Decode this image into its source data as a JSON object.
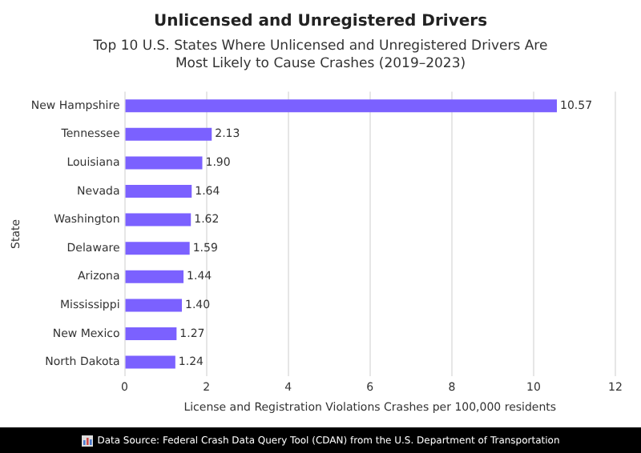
{
  "chart_data": {
    "type": "bar",
    "orientation": "horizontal",
    "title": "Unlicensed and Unregistered Drivers",
    "subtitle": "Top 10 U.S. States Where Unlicensed and Unregistered Drivers Are Most Likely to Cause Crashes (2019–2023)",
    "xlabel": "License and Registration Violations Crashes per 100,000 residents",
    "ylabel": "State",
    "categories": [
      "New Hampshire",
      "Tennessee",
      "Louisiana",
      "Nevada",
      "Washington",
      "Delaware",
      "Arizona",
      "Mississippi",
      "New Mexico",
      "North Dakota"
    ],
    "values": [
      10.57,
      2.13,
      1.9,
      1.64,
      1.62,
      1.59,
      1.44,
      1.4,
      1.27,
      1.24
    ],
    "value_labels": [
      "10.57",
      "2.13",
      "1.90",
      "1.64",
      "1.62",
      "1.59",
      "1.44",
      "1.40",
      "1.27",
      "1.24"
    ],
    "color": "#7b61ff",
    "xlim": [
      0,
      12
    ],
    "xticks": [
      0,
      2,
      4,
      6,
      8,
      10,
      12
    ],
    "grid": "x",
    "legend": false,
    "annotations": [
      "Data Source: Federal Crash Data Query Tool (CDAN) from the U.S. Department of Transportation"
    ]
  }
}
